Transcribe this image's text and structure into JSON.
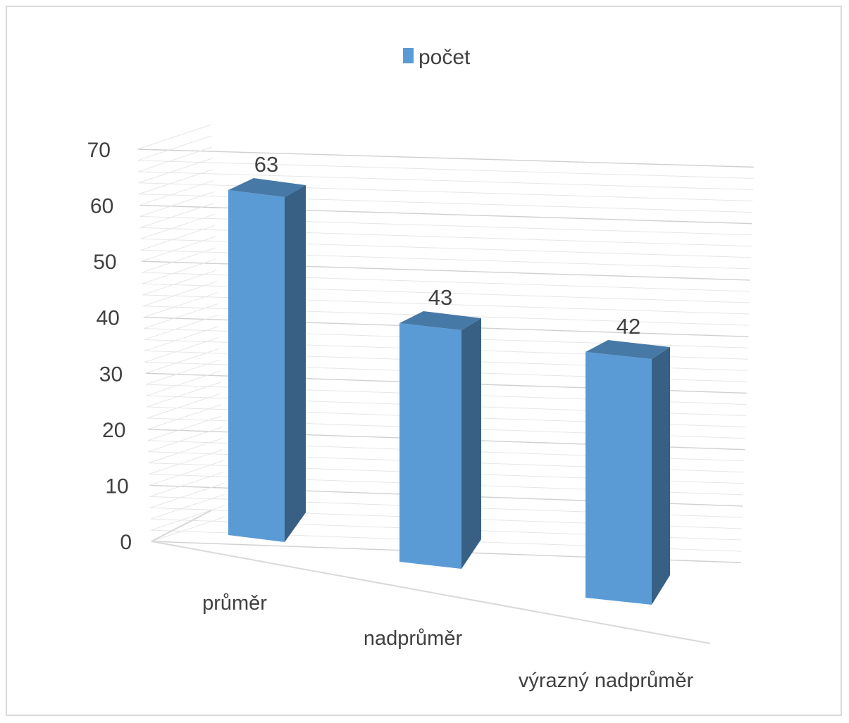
{
  "chart_data": {
    "type": "bar",
    "title": "",
    "xlabel": "",
    "ylabel": "",
    "categories": [
      "průměr",
      "nadprůměr",
      "výrazný nadprůměr"
    ],
    "series": [
      {
        "name": "počet",
        "values": [
          63,
          43,
          42
        ],
        "color": "#5b9bd5"
      }
    ],
    "data_labels": [
      "63",
      "43",
      "42"
    ],
    "yticks": [
      "0",
      "10",
      "20",
      "30",
      "40",
      "50",
      "60",
      "70"
    ],
    "ylim": [
      0,
      70
    ],
    "grid": true,
    "legend_position": "top",
    "style": "3d-column"
  }
}
